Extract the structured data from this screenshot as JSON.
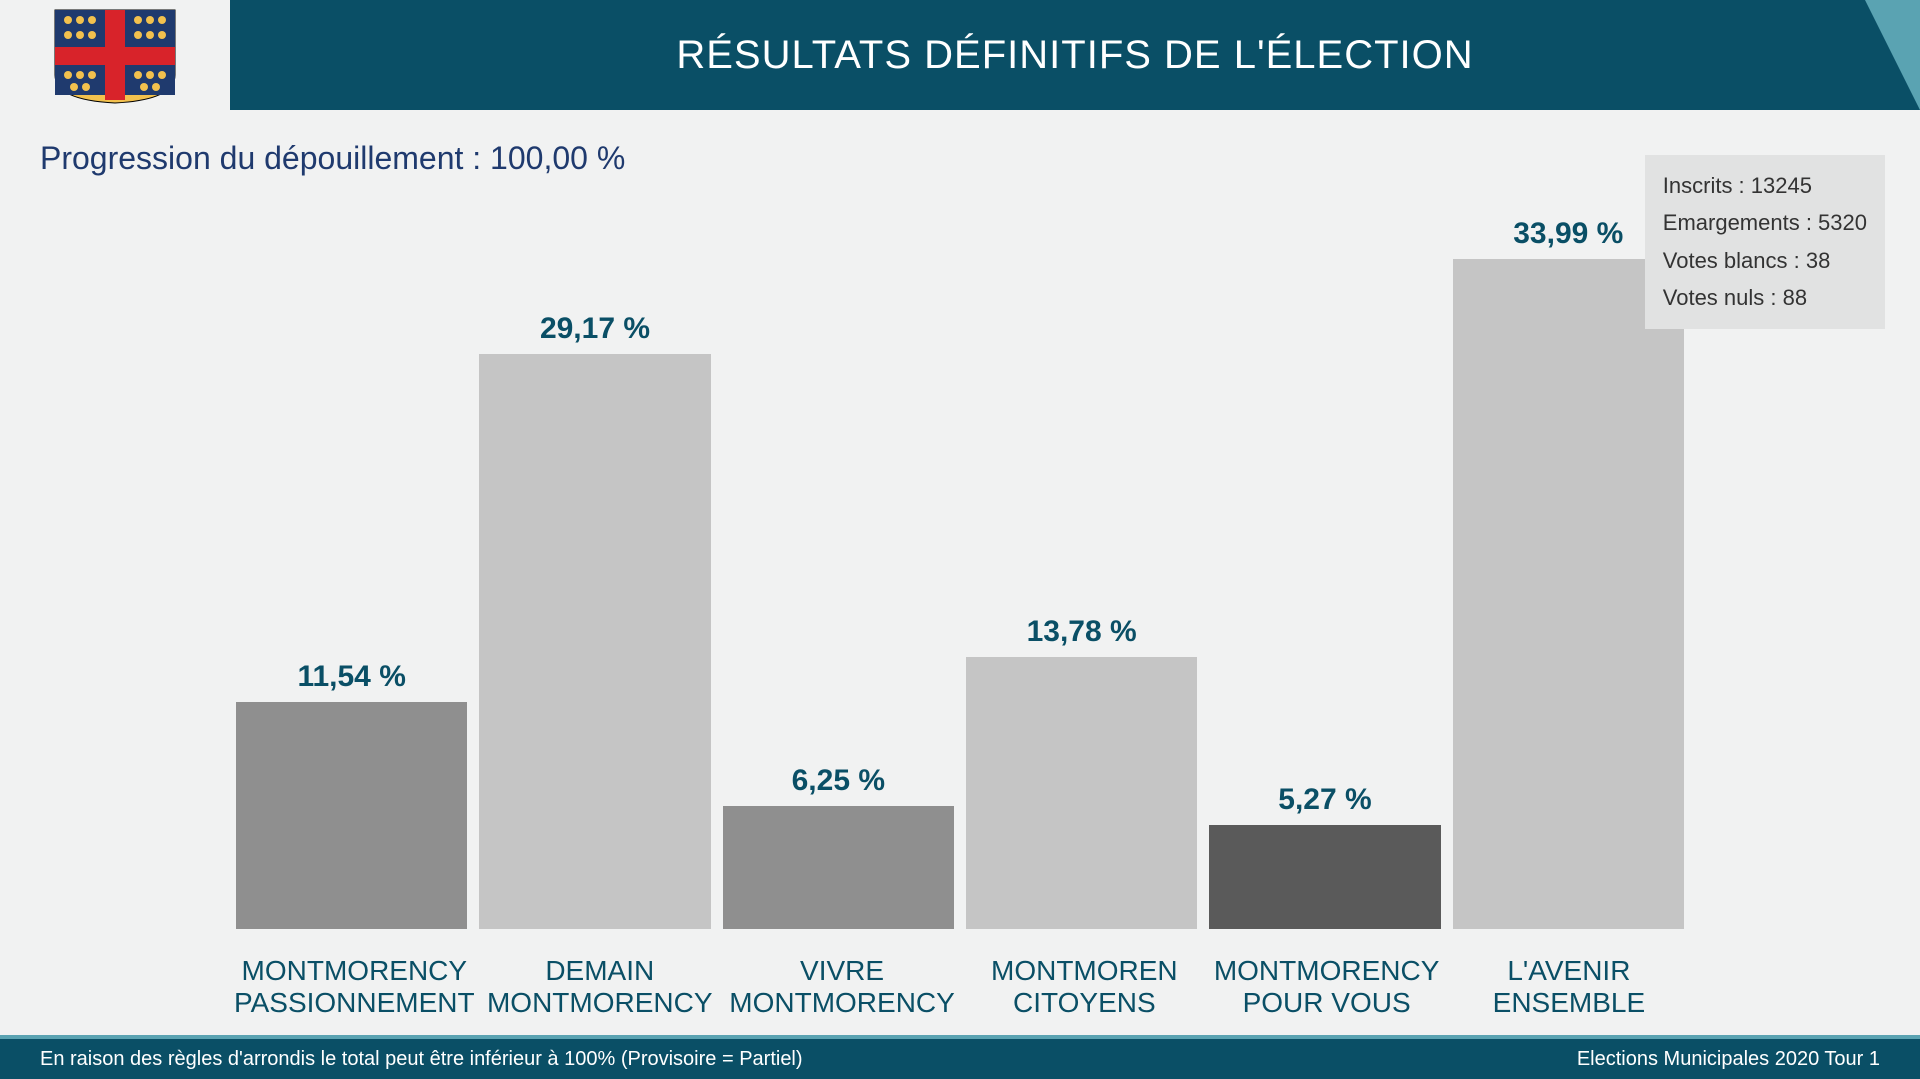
{
  "header": {
    "title": "RÉSULTATS DÉFINITIFS DE L'ÉLECTION",
    "title_color": "#ffffff",
    "title_fontsize": 40,
    "bar_bg": "#0a4f66",
    "accent_color": "#5aa3b2"
  },
  "progression": {
    "text": "Progression du dépouillement : 100,00 %",
    "color": "#1f3a6e",
    "fontsize": 32
  },
  "stats": {
    "lines": [
      "Inscrits : 13245",
      "Emargements : 5320",
      "Votes blancs : 38",
      "Votes nuls : 88"
    ],
    "bg": "#e1e2e2",
    "fontsize": 22,
    "color": "#333333"
  },
  "chart": {
    "type": "bar",
    "max_value": 33.99,
    "value_color": "#0a4f66",
    "value_fontsize": 30,
    "label_color": "#0a4f66",
    "label_fontsize": 28,
    "bars": [
      {
        "label_line1": "MONTMORENCY",
        "label_line2": "PASSIONNEMENT",
        "value": 11.54,
        "value_text": "11,54 %",
        "color": "#8f8f8f"
      },
      {
        "label_line1": "DEMAIN",
        "label_line2": "MONTMORENCY",
        "value": 29.17,
        "value_text": "29,17 %",
        "color": "#c5c5c5"
      },
      {
        "label_line1": "VIVRE",
        "label_line2": "MONTMORENCY",
        "value": 6.25,
        "value_text": "6,25 %",
        "color": "#8f8f8f"
      },
      {
        "label_line1": "MONTMOREN",
        "label_line2": "CITOYENS",
        "value": 13.78,
        "value_text": "13,78 %",
        "color": "#c5c5c5"
      },
      {
        "label_line1": "MONTMORENCY",
        "label_line2": "POUR VOUS",
        "value": 5.27,
        "value_text": "5,27 %",
        "color": "#5a5a5a"
      },
      {
        "label_line1": "L'AVENIR",
        "label_line2": "ENSEMBLE",
        "value": 33.99,
        "value_text": "33,99 %",
        "color": "#c5c5c5"
      }
    ]
  },
  "footer": {
    "left": "En raison des règles d'arrondis le total peut être inférieur à 100% (Provisoire = Partiel)",
    "right": "Elections Municipales 2020 Tour 1",
    "bg": "#0a4f66",
    "border_top": "#5aa3b2",
    "color": "#ffffff",
    "fontsize": 20
  },
  "background_color": "#f1f2f2",
  "logo": {
    "shield_red": "#d8232a",
    "shield_blue": "#1f3a6e",
    "shield_gold": "#f2c14e"
  }
}
